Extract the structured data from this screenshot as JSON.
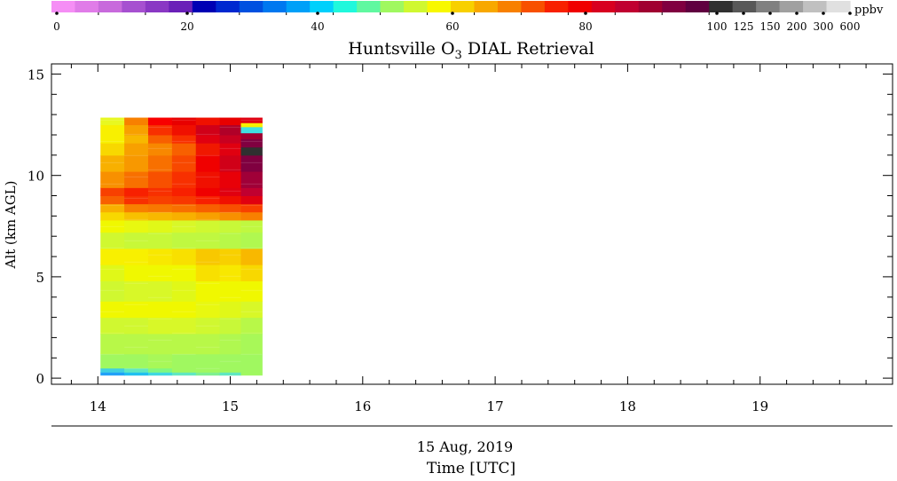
{
  "chart_data": {
    "type": "heatmap",
    "title_main": "Huntsville O",
    "title_sub": "3",
    "title_rest": " DIAL Retrieval",
    "ylabel": "Alt (km AGL)",
    "xlabel": "Time [UTC]",
    "date_label": "15 Aug, 2019",
    "xlim": [
      13.65,
      20.0
    ],
    "ylim": [
      -0.3,
      15.5
    ],
    "x_ticks": [
      {
        "value": 14,
        "label": "14"
      },
      {
        "value": 15,
        "label": "15"
      },
      {
        "value": 16,
        "label": "16"
      },
      {
        "value": 17,
        "label": "17"
      },
      {
        "value": 18,
        "label": "18"
      },
      {
        "value": 19,
        "label": "19"
      }
    ],
    "y_ticks": [
      {
        "value": 0,
        "label": "0"
      },
      {
        "value": 5,
        "label": "5"
      },
      {
        "value": 10,
        "label": "10"
      },
      {
        "value": 15,
        "label": "15"
      }
    ],
    "colorbar": {
      "unit": "ppbv",
      "tick_labels": [
        "0",
        "20",
        "40",
        "60",
        "80",
        "100",
        "125",
        "150",
        "200",
        "300",
        "600"
      ],
      "colors": [
        "#f58ef5",
        "#e07ce8",
        "#c86adc",
        "#a650d0",
        "#8a38c4",
        "#6a20b8",
        "#0000b4",
        "#0028d0",
        "#0050e0",
        "#0078f0",
        "#00a0f8",
        "#00d0fc",
        "#20f8dc",
        "#60f8a0",
        "#a0f860",
        "#d0f830",
        "#f8f800",
        "#f8d000",
        "#f8a800",
        "#f88000",
        "#f85000",
        "#f82000",
        "#f00000",
        "#d80020",
        "#c00030",
        "#a00030",
        "#800040",
        "#600040",
        "#303030",
        "#585858",
        "#808080",
        "#a0a0a0",
        "#c0c0c0",
        "#e0e0e0"
      ]
    },
    "heatmap": {
      "x_edges": [
        14.02,
        14.2,
        14.38,
        14.56,
        14.74,
        14.92,
        15.08,
        15.24
      ],
      "y_bottom": 0.15,
      "y_top": 12.85,
      "profiles": [
        [
          [
            0.15,
            "#20a0f8"
          ],
          [
            0.3,
            "#40d0e0"
          ],
          [
            0.5,
            "#a0f860"
          ],
          [
            1.2,
            "#b8f848"
          ],
          [
            2.2,
            "#d0f830"
          ],
          [
            3.0,
            "#f0f800"
          ],
          [
            3.8,
            "#d0f830"
          ],
          [
            4.8,
            "#e0f818"
          ],
          [
            5.6,
            "#f8f000"
          ],
          [
            6.4,
            "#d0f830"
          ],
          [
            7.2,
            "#f0f800"
          ],
          [
            7.8,
            "#f8d800"
          ],
          [
            8.2,
            "#f8b000"
          ],
          [
            8.6,
            "#f86000"
          ],
          [
            9.0,
            "#f84000"
          ],
          [
            9.4,
            "#f89000"
          ],
          [
            10.2,
            "#f8b000"
          ],
          [
            11.0,
            "#f8d800"
          ],
          [
            11.6,
            "#f8f000"
          ],
          [
            12.5,
            "#e8f820"
          ],
          [
            12.85,
            "#e8f820"
          ]
        ],
        [
          [
            0.15,
            "#20c0f0"
          ],
          [
            0.3,
            "#60e8c0"
          ],
          [
            0.5,
            "#a0f860"
          ],
          [
            1.2,
            "#b8f848"
          ],
          [
            2.2,
            "#d0f830"
          ],
          [
            3.0,
            "#f0f800"
          ],
          [
            3.8,
            "#d8f828"
          ],
          [
            4.8,
            "#f0f800"
          ],
          [
            5.6,
            "#f8f000"
          ],
          [
            6.4,
            "#c8f838"
          ],
          [
            7.2,
            "#e8f810"
          ],
          [
            7.8,
            "#f8c000"
          ],
          [
            8.2,
            "#f88000"
          ],
          [
            8.6,
            "#f83000"
          ],
          [
            9.0,
            "#f82000"
          ],
          [
            9.4,
            "#f87000"
          ],
          [
            10.2,
            "#f89800"
          ],
          [
            11.0,
            "#f8a000"
          ],
          [
            11.6,
            "#f8b800"
          ],
          [
            12.0,
            "#f8a000"
          ],
          [
            12.5,
            "#f88000"
          ],
          [
            12.85,
            "#f88000"
          ]
        ],
        [
          [
            0.15,
            "#40d8e0"
          ],
          [
            0.3,
            "#80f880"
          ],
          [
            0.5,
            "#a8f858"
          ],
          [
            1.2,
            "#b8f848"
          ],
          [
            2.2,
            "#d8f828"
          ],
          [
            3.0,
            "#f0f800"
          ],
          [
            3.8,
            "#d8f828"
          ],
          [
            4.8,
            "#f0f800"
          ],
          [
            5.6,
            "#f8e800"
          ],
          [
            6.4,
            "#c8f838"
          ],
          [
            7.2,
            "#e0f818"
          ],
          [
            7.8,
            "#f8b800"
          ],
          [
            8.2,
            "#f87800"
          ],
          [
            8.6,
            "#f84000"
          ],
          [
            9.0,
            "#f83000"
          ],
          [
            9.4,
            "#f85000"
          ],
          [
            10.2,
            "#f87000"
          ],
          [
            11.0,
            "#f88800"
          ],
          [
            11.6,
            "#f86000"
          ],
          [
            12.0,
            "#f83000"
          ],
          [
            12.5,
            "#f80000"
          ],
          [
            12.85,
            "#f80000"
          ]
        ],
        [
          [
            0.15,
            "#60e8c0"
          ],
          [
            0.3,
            "#a0f860"
          ],
          [
            1.2,
            "#b8f848"
          ],
          [
            2.2,
            "#d8f828"
          ],
          [
            3.0,
            "#f0f800"
          ],
          [
            3.8,
            "#e0f818"
          ],
          [
            4.8,
            "#f0f800"
          ],
          [
            5.6,
            "#f8e000"
          ],
          [
            6.4,
            "#c0f840"
          ],
          [
            7.2,
            "#d8f828"
          ],
          [
            7.8,
            "#f8b000"
          ],
          [
            8.2,
            "#f87000"
          ],
          [
            8.6,
            "#f83800"
          ],
          [
            9.0,
            "#f82000"
          ],
          [
            9.4,
            "#f83000"
          ],
          [
            10.2,
            "#f84800"
          ],
          [
            11.0,
            "#f86000"
          ],
          [
            11.6,
            "#f83000"
          ],
          [
            12.0,
            "#f01000"
          ],
          [
            12.5,
            "#e80000"
          ],
          [
            12.85,
            "#e80000"
          ]
        ],
        [
          [
            0.15,
            "#80f090"
          ],
          [
            0.3,
            "#a0f860"
          ],
          [
            1.2,
            "#b8f848"
          ],
          [
            2.2,
            "#d0f830"
          ],
          [
            3.0,
            "#e8f810"
          ],
          [
            3.8,
            "#f0f800"
          ],
          [
            4.8,
            "#f8e000"
          ],
          [
            5.6,
            "#f8c800"
          ],
          [
            6.4,
            "#c0f840"
          ],
          [
            7.2,
            "#d0f830"
          ],
          [
            7.8,
            "#f8a000"
          ],
          [
            8.2,
            "#f86000"
          ],
          [
            8.6,
            "#f82000"
          ],
          [
            9.0,
            "#f00000"
          ],
          [
            9.4,
            "#f01000"
          ],
          [
            10.2,
            "#f00000"
          ],
          [
            11.0,
            "#f01800"
          ],
          [
            11.6,
            "#e00010"
          ],
          [
            12.0,
            "#d00018"
          ],
          [
            12.5,
            "#f01000"
          ],
          [
            12.85,
            "#f01000"
          ]
        ],
        [
          [
            0.15,
            "#60e8c0"
          ],
          [
            0.3,
            "#a0f860"
          ],
          [
            1.2,
            "#b0f850"
          ],
          [
            2.2,
            "#c8f838"
          ],
          [
            3.0,
            "#e0f818"
          ],
          [
            3.8,
            "#f0f800"
          ],
          [
            4.8,
            "#f8e800"
          ],
          [
            5.6,
            "#f8d000"
          ],
          [
            6.4,
            "#b8f848"
          ],
          [
            7.2,
            "#c8f838"
          ],
          [
            7.8,
            "#f89000"
          ],
          [
            8.2,
            "#f85000"
          ],
          [
            8.6,
            "#f01000"
          ],
          [
            9.0,
            "#e00010"
          ],
          [
            9.4,
            "#e80008"
          ],
          [
            10.2,
            "#d00018"
          ],
          [
            11.0,
            "#e00010"
          ],
          [
            11.6,
            "#c80020"
          ],
          [
            12.0,
            "#b00028"
          ],
          [
            12.5,
            "#e80000"
          ],
          [
            12.85,
            "#e80000"
          ]
        ],
        [
          [
            0.15,
            "#a0f860"
          ],
          [
            1.2,
            "#a8f858"
          ],
          [
            2.2,
            "#b8f848"
          ],
          [
            3.0,
            "#d8f828"
          ],
          [
            3.8,
            "#f0f800"
          ],
          [
            4.8,
            "#f8d800"
          ],
          [
            5.6,
            "#f8b800"
          ],
          [
            6.4,
            "#b0f850"
          ],
          [
            7.2,
            "#c0f840"
          ],
          [
            7.8,
            "#f88000"
          ],
          [
            8.2,
            "#f84000"
          ],
          [
            8.6,
            "#e00010"
          ],
          [
            9.0,
            "#c00030"
          ],
          [
            9.4,
            "#a00038"
          ],
          [
            10.2,
            "#800040"
          ],
          [
            11.0,
            "#303030"
          ],
          [
            11.4,
            "#800040"
          ],
          [
            11.8,
            "#a00030"
          ],
          [
            12.1,
            "#40e0e0"
          ],
          [
            12.4,
            "#f8f000"
          ],
          [
            12.6,
            "#e00010"
          ],
          [
            12.85,
            "#e00010"
          ]
        ]
      ]
    }
  }
}
